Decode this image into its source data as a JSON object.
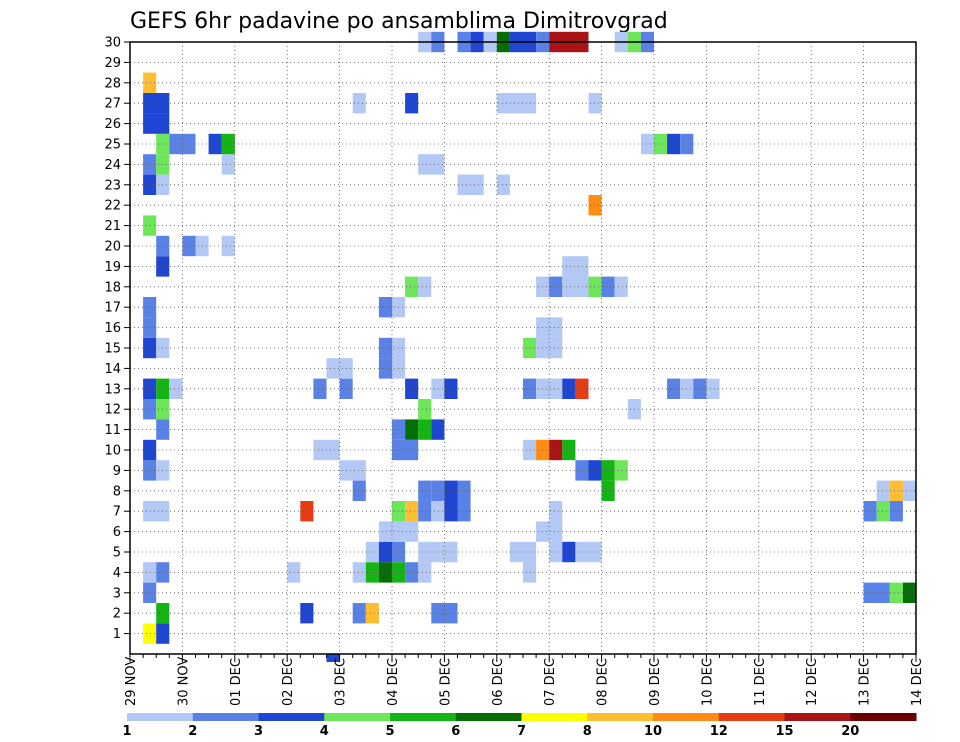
{
  "chart_data": {
    "type": "heatmap",
    "title": "GEFS 6hr padavine po ansamblima Dimitrovgrad",
    "xlabel": "",
    "ylabel": "",
    "y_ticks": [
      "1",
      "2",
      "3",
      "4",
      "5",
      "6",
      "7",
      "8",
      "9",
      "10",
      "11",
      "12",
      "13",
      "14",
      "15",
      "16",
      "17",
      "18",
      "19",
      "20",
      "21",
      "22",
      "23",
      "24",
      "25",
      "26",
      "27",
      "28",
      "29",
      "30"
    ],
    "x_tick_labels": [
      "29 NOV",
      "30 NOV",
      "01 DEC",
      "02 DEC",
      "03 DEC",
      "04 DEC",
      "05 DEC",
      "06 DEC",
      "07 DEC",
      "08 DEC",
      "09 DEC",
      "10 DEC",
      "11 DEC",
      "12 DEC",
      "13 DEC",
      "14 DEC"
    ],
    "x_unit": "6-hour steps from 29 NOV 00Z",
    "x_range": [
      0,
      60
    ],
    "y_range": [
      0,
      30
    ],
    "grid": true,
    "colorbar": {
      "labels": [
        "1",
        "2",
        "3",
        "4",
        "5",
        "6",
        "7",
        "8",
        "10",
        "12",
        "15",
        "20"
      ],
      "colors": [
        "#b4c8f5",
        "#5a82e6",
        "#1e46d2",
        "#6ee65a",
        "#14b414",
        "#056e05",
        "#ffff00",
        "#ffbe32",
        "#ff8c14",
        "#e63c14",
        "#aa1414",
        "#6e0000"
      ]
    },
    "cells": [
      {
        "m": 1,
        "t": [
          [
            1,
            2,
            "#ffff00"
          ],
          [
            2,
            3,
            "#1e46d2"
          ]
        ]
      },
      {
        "m": 2,
        "t": [
          [
            2,
            3,
            "#14b414"
          ],
          [
            13,
            14,
            "#1e46d2"
          ],
          [
            17,
            18,
            "#5a82e6"
          ],
          [
            18,
            19,
            "#ffbe32"
          ],
          [
            23,
            25,
            "#5a82e6"
          ]
        ]
      },
      {
        "m": 3,
        "t": [
          [
            1,
            2,
            "#5a82e6"
          ],
          [
            56,
            58,
            "#5a82e6"
          ],
          [
            58,
            59,
            "#6ee65a"
          ],
          [
            59,
            60,
            "#056e05"
          ]
        ]
      },
      {
        "m": 4,
        "t": [
          [
            1,
            2,
            "#b4c8f5"
          ],
          [
            2,
            3,
            "#5a82e6"
          ],
          [
            12,
            13,
            "#b4c8f5"
          ],
          [
            17,
            18,
            "#b4c8f5"
          ],
          [
            18,
            19,
            "#14b414"
          ],
          [
            19,
            20,
            "#056e05"
          ],
          [
            20,
            21,
            "#14b414"
          ],
          [
            21,
            22,
            "#5a82e6"
          ],
          [
            22,
            23,
            "#b4c8f5"
          ],
          [
            30,
            31,
            "#b4c8f5"
          ]
        ]
      },
      {
        "m": 5,
        "t": [
          [
            18,
            19,
            "#b4c8f5"
          ],
          [
            19,
            20,
            "#1e46d2"
          ],
          [
            20,
            21,
            "#5a82e6"
          ],
          [
            22,
            24,
            "#b4c8f5"
          ],
          [
            29,
            31,
            "#b4c8f5"
          ],
          [
            24,
            25,
            "#b4c8f5"
          ],
          [
            24,
            25,
            "#b4c8f5"
          ],
          [
            32,
            33,
            "#b4c8f5"
          ],
          [
            33,
            34,
            "#1e46d2"
          ],
          [
            34,
            36,
            "#b4c8f5"
          ]
        ]
      },
      {
        "m": 6,
        "t": [
          [
            19,
            22,
            "#b4c8f5"
          ],
          [
            31,
            32,
            "#b4c8f5"
          ],
          [
            32,
            33,
            "#b4c8f5"
          ]
        ]
      },
      {
        "m": 7,
        "t": [
          [
            1,
            3,
            "#b4c8f5"
          ],
          [
            13,
            14,
            "#e63c14"
          ],
          [
            20,
            21,
            "#6ee65a"
          ],
          [
            21,
            22,
            "#ffbe32"
          ],
          [
            22,
            23,
            "#5a82e6"
          ],
          [
            23,
            24,
            "#b4c8f5"
          ],
          [
            24,
            25,
            "#1e46d2"
          ],
          [
            25,
            26,
            "#5a82e6"
          ],
          [
            32,
            33,
            "#b4c8f5"
          ],
          [
            56,
            57,
            "#5a82e6"
          ],
          [
            57,
            58,
            "#6ee65a"
          ],
          [
            58,
            59,
            "#5a82e6"
          ]
        ]
      },
      {
        "m": 8,
        "t": [
          [
            17,
            18,
            "#5a82e6"
          ],
          [
            22,
            23,
            "#5a82e6"
          ],
          [
            24,
            25,
            "#1e46d2"
          ],
          [
            25,
            26,
            "#5a82e6"
          ],
          [
            23,
            24,
            "#5a82e6"
          ],
          [
            36,
            37,
            "#14b414"
          ],
          [
            57,
            58,
            "#b4c8f5"
          ],
          [
            58,
            59,
            "#ffbe32"
          ],
          [
            59,
            60,
            "#b4c8f5"
          ]
        ]
      },
      {
        "m": 9,
        "t": [
          [
            1,
            2,
            "#5a82e6"
          ],
          [
            2,
            3,
            "#b4c8f5"
          ],
          [
            16,
            18,
            "#b4c8f5"
          ],
          [
            34,
            35,
            "#5a82e6"
          ],
          [
            35,
            36,
            "#1e46d2"
          ],
          [
            36,
            37,
            "#14b414"
          ],
          [
            37,
            38,
            "#6ee65a"
          ]
        ]
      },
      {
        "m": 10,
        "t": [
          [
            1,
            2,
            "#1e46d2"
          ],
          [
            14,
            16,
            "#b4c8f5"
          ],
          [
            20,
            22,
            "#5a82e6"
          ],
          [
            30,
            31,
            "#b4c8f5"
          ],
          [
            31,
            32,
            "#ff8c14"
          ],
          [
            32,
            33,
            "#aa1414"
          ],
          [
            33,
            34,
            "#14b414"
          ]
        ]
      },
      {
        "m": 11,
        "t": [
          [
            2,
            3,
            "#5a82e6"
          ],
          [
            20,
            21,
            "#5a82e6"
          ],
          [
            21,
            22,
            "#056e05"
          ],
          [
            22,
            23,
            "#14b414"
          ],
          [
            23,
            24,
            "#1e46d2"
          ]
        ]
      },
      {
        "m": 12,
        "t": [
          [
            1,
            2,
            "#5a82e6"
          ],
          [
            2,
            3,
            "#6ee65a"
          ],
          [
            22,
            23,
            "#6ee65a"
          ],
          [
            38,
            39,
            "#b4c8f5"
          ]
        ]
      },
      {
        "m": 13,
        "t": [
          [
            1,
            2,
            "#1e46d2"
          ],
          [
            2,
            3,
            "#14b414"
          ],
          [
            3,
            4,
            "#b4c8f5"
          ],
          [
            14,
            15,
            "#5a82e6"
          ],
          [
            16,
            17,
            "#5a82e6"
          ],
          [
            21,
            22,
            "#1e46d2"
          ],
          [
            23,
            24,
            "#b4c8f5"
          ],
          [
            24,
            25,
            "#1e46d2"
          ],
          [
            30,
            31,
            "#5a82e6"
          ],
          [
            31,
            33,
            "#b4c8f5"
          ],
          [
            33,
            34,
            "#1e46d2"
          ],
          [
            34,
            35,
            "#e63c14"
          ],
          [
            41,
            42,
            "#5a82e6"
          ],
          [
            42,
            43,
            "#b4c8f5"
          ],
          [
            43,
            44,
            "#5a82e6"
          ],
          [
            44,
            45,
            "#b4c8f5"
          ]
        ]
      },
      {
        "m": 14,
        "t": [
          [
            15,
            17,
            "#b4c8f5"
          ],
          [
            19,
            20,
            "#5a82e6"
          ],
          [
            20,
            21,
            "#b4c8f5"
          ]
        ]
      },
      {
        "m": 15,
        "t": [
          [
            1,
            2,
            "#1e46d2"
          ],
          [
            2,
            3,
            "#b4c8f5"
          ],
          [
            19,
            20,
            "#5a82e6"
          ],
          [
            20,
            21,
            "#b4c8f5"
          ],
          [
            30,
            31,
            "#6ee65a"
          ],
          [
            31,
            33,
            "#b4c8f5"
          ]
        ]
      },
      {
        "m": 16,
        "t": [
          [
            1,
            2,
            "#5a82e6"
          ],
          [
            31,
            33,
            "#b4c8f5"
          ]
        ]
      },
      {
        "m": 17,
        "t": [
          [
            1,
            2,
            "#5a82e6"
          ],
          [
            19,
            20,
            "#5a82e6"
          ],
          [
            20,
            21,
            "#b4c8f5"
          ]
        ]
      },
      {
        "m": 18,
        "t": [
          [
            21,
            22,
            "#6ee65a"
          ],
          [
            22,
            23,
            "#b4c8f5"
          ],
          [
            31,
            32,
            "#b4c8f5"
          ],
          [
            32,
            33,
            "#5a82e6"
          ],
          [
            33,
            35,
            "#b4c8f5"
          ],
          [
            35,
            36,
            "#6ee65a"
          ],
          [
            36,
            37,
            "#5a82e6"
          ],
          [
            37,
            38,
            "#b4c8f5"
          ]
        ]
      },
      {
        "m": 19,
        "t": [
          [
            2,
            3,
            "#1e46d2"
          ],
          [
            33,
            35,
            "#b4c8f5"
          ]
        ]
      },
      {
        "m": 20,
        "t": [
          [
            2,
            3,
            "#5a82e6"
          ],
          [
            4,
            5,
            "#5a82e6"
          ],
          [
            5,
            6,
            "#b4c8f5"
          ],
          [
            7,
            8,
            "#b4c8f5"
          ]
        ]
      },
      {
        "m": 21,
        "t": [
          [
            1,
            2,
            "#6ee65a"
          ]
        ]
      },
      {
        "m": 22,
        "t": [
          [
            35,
            36,
            "#ff8c14"
          ]
        ]
      },
      {
        "m": 23,
        "t": [
          [
            1,
            2,
            "#1e46d2"
          ],
          [
            2,
            3,
            "#b4c8f5"
          ],
          [
            25,
            27,
            "#b4c8f5"
          ],
          [
            28,
            29,
            "#b4c8f5"
          ]
        ]
      },
      {
        "m": 24,
        "t": [
          [
            1,
            2,
            "#5a82e6"
          ],
          [
            2,
            3,
            "#6ee65a"
          ],
          [
            7,
            8,
            "#b4c8f5"
          ],
          [
            22,
            24,
            "#b4c8f5"
          ]
        ]
      },
      {
        "m": 25,
        "t": [
          [
            2,
            3,
            "#6ee65a"
          ],
          [
            3,
            5,
            "#5a82e6"
          ],
          [
            6,
            7,
            "#1e46d2"
          ],
          [
            7,
            8,
            "#14b414"
          ],
          [
            39,
            40,
            "#b4c8f5"
          ],
          [
            40,
            41,
            "#6ee65a"
          ],
          [
            41,
            42,
            "#1e46d2"
          ],
          [
            42,
            43,
            "#5a82e6"
          ]
        ]
      },
      {
        "m": 26,
        "t": [
          [
            1,
            3,
            "#1e46d2"
          ]
        ]
      },
      {
        "m": 27,
        "t": [
          [
            1,
            3,
            "#1e46d2"
          ],
          [
            17,
            18,
            "#b4c8f5"
          ],
          [
            21,
            22,
            "#1e46d2"
          ],
          [
            28,
            31,
            "#b4c8f5"
          ],
          [
            35,
            36,
            "#b4c8f5"
          ]
        ]
      },
      {
        "m": 28,
        "t": [
          [
            1,
            2,
            "#ffbe32"
          ]
        ]
      },
      {
        "m": 30,
        "t": [
          [
            22,
            23,
            "#b4c8f5"
          ],
          [
            23,
            24,
            "#5a82e6"
          ],
          [
            25,
            26,
            "#5a82e6"
          ],
          [
            26,
            27,
            "#1e46d2"
          ],
          [
            27,
            28,
            "#b4c8f5"
          ],
          [
            28,
            29,
            "#056e05"
          ],
          [
            29,
            31,
            "#1e46d2"
          ],
          [
            31,
            32,
            "#5a82e6"
          ],
          [
            32,
            35,
            "#aa1414"
          ],
          [
            37,
            38,
            "#b4c8f5"
          ],
          [
            38,
            39,
            "#6ee65a"
          ],
          [
            39,
            40,
            "#5a82e6"
          ]
        ]
      },
      {
        "m": 0,
        "t": [
          [
            15,
            16,
            "#1e46d2"
          ]
        ]
      }
    ]
  }
}
